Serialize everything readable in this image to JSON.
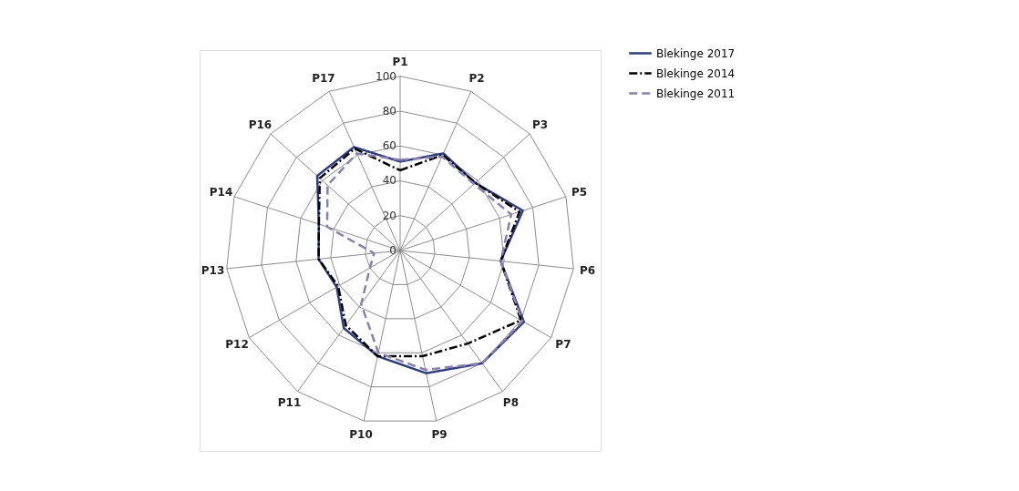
{
  "chart_data": {
    "type": "radar",
    "categories": [
      "P1",
      "P2",
      "P3",
      "P5",
      "P6",
      "P7",
      "P8",
      "P9",
      "P10",
      "P11",
      "P12",
      "P13",
      "P14",
      "P16",
      "P17"
    ],
    "series": [
      {
        "name": "Blekinge 2017",
        "color": "#2e3f7f",
        "line_style": "solid",
        "values": [
          51,
          61,
          58,
          74,
          58,
          82,
          80,
          72,
          62,
          55,
          42,
          47,
          49,
          64,
          65
        ]
      },
      {
        "name": "Blekinge 2014",
        "color": "#000000",
        "line_style": "dotted",
        "values": [
          46,
          60,
          58,
          72,
          58,
          80,
          66,
          62,
          62,
          53,
          41,
          47,
          49,
          62,
          64
        ]
      },
      {
        "name": "Blekinge 2011",
        "color": "#8b7fb0",
        "line_style": "dashed",
        "values": [
          52,
          59,
          57,
          67,
          58,
          81,
          80,
          70,
          60,
          38,
          20,
          15,
          44,
          56,
          61
        ]
      }
    ],
    "ylim": [
      0,
      100
    ],
    "yticks": [
      0,
      20,
      40,
      60,
      80,
      100
    ],
    "grid": true,
    "legend": "top right",
    "marker": "none"
  }
}
